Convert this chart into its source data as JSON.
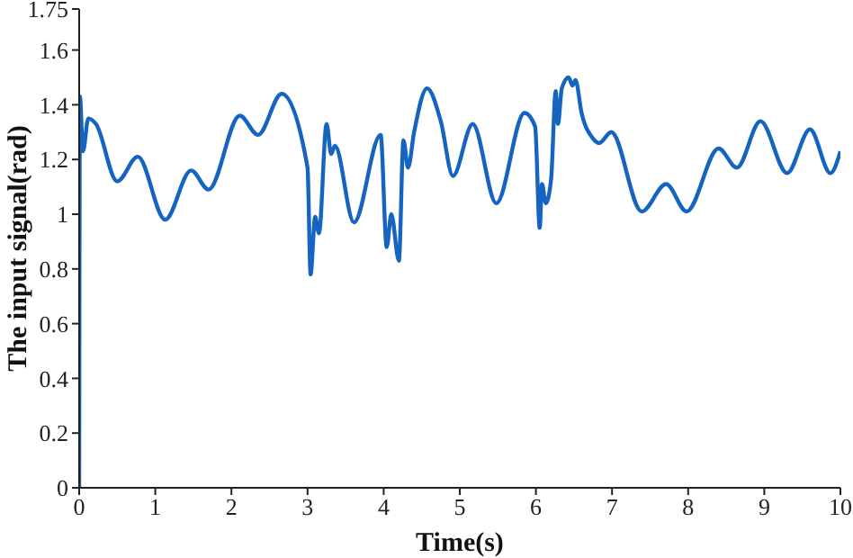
{
  "chart_data": {
    "type": "line",
    "xlabel": "Time(s)",
    "ylabel": "The input signal(rad)",
    "xlim": [
      0,
      10
    ],
    "xticks": [
      0,
      1,
      2,
      3,
      4,
      5,
      6,
      7,
      8,
      9,
      10
    ],
    "ylim": [
      0,
      1.75
    ],
    "yticks": [
      0,
      0.2,
      0.4,
      0.6,
      0.8,
      1,
      1.2,
      1.4,
      1.6,
      1.75
    ],
    "grid": false,
    "legend": false,
    "marker": "none",
    "line_style": "solid",
    "x": [
      0,
      0.01,
      0.05,
      0.12,
      0.22,
      0.5,
      0.77,
      1.13,
      1.47,
      1.7,
      2.11,
      2.35,
      2.66,
      3.0,
      3.04,
      3.1,
      3.15,
      3.25,
      3.31,
      3.36,
      3.61,
      3.96,
      4.04,
      4.1,
      4.2,
      4.26,
      4.32,
      4.4,
      4.57,
      4.75,
      4.91,
      5.17,
      5.48,
      5.85,
      5.99,
      6.05,
      6.08,
      6.13,
      6.2,
      6.26,
      6.29,
      6.34,
      6.43,
      6.48,
      6.52,
      6.6,
      6.74,
      6.83,
      6.99,
      7.39,
      7.71,
      7.98,
      8.4,
      8.64,
      8.95,
      9.3,
      9.6,
      9.87,
      10
    ],
    "series": [
      {
        "color": "#1565c0",
        "values": [
          0,
          1.43,
          1.23,
          1.35,
          1.33,
          1.12,
          1.21,
          0.98,
          1.16,
          1.09,
          1.36,
          1.29,
          1.44,
          1.17,
          0.78,
          0.99,
          0.93,
          1.33,
          1.22,
          1.25,
          0.97,
          1.29,
          0.88,
          1.0,
          0.83,
          1.27,
          1.17,
          1.3,
          1.46,
          1.34,
          1.14,
          1.33,
          1.04,
          1.37,
          1.32,
          0.95,
          1.11,
          1.04,
          1.13,
          1.45,
          1.33,
          1.46,
          1.5,
          1.47,
          1.49,
          1.37,
          1.28,
          1.26,
          1.3,
          1.01,
          1.11,
          1.01,
          1.24,
          1.17,
          1.34,
          1.15,
          1.31,
          1.15,
          1.23
        ]
      }
    ]
  }
}
